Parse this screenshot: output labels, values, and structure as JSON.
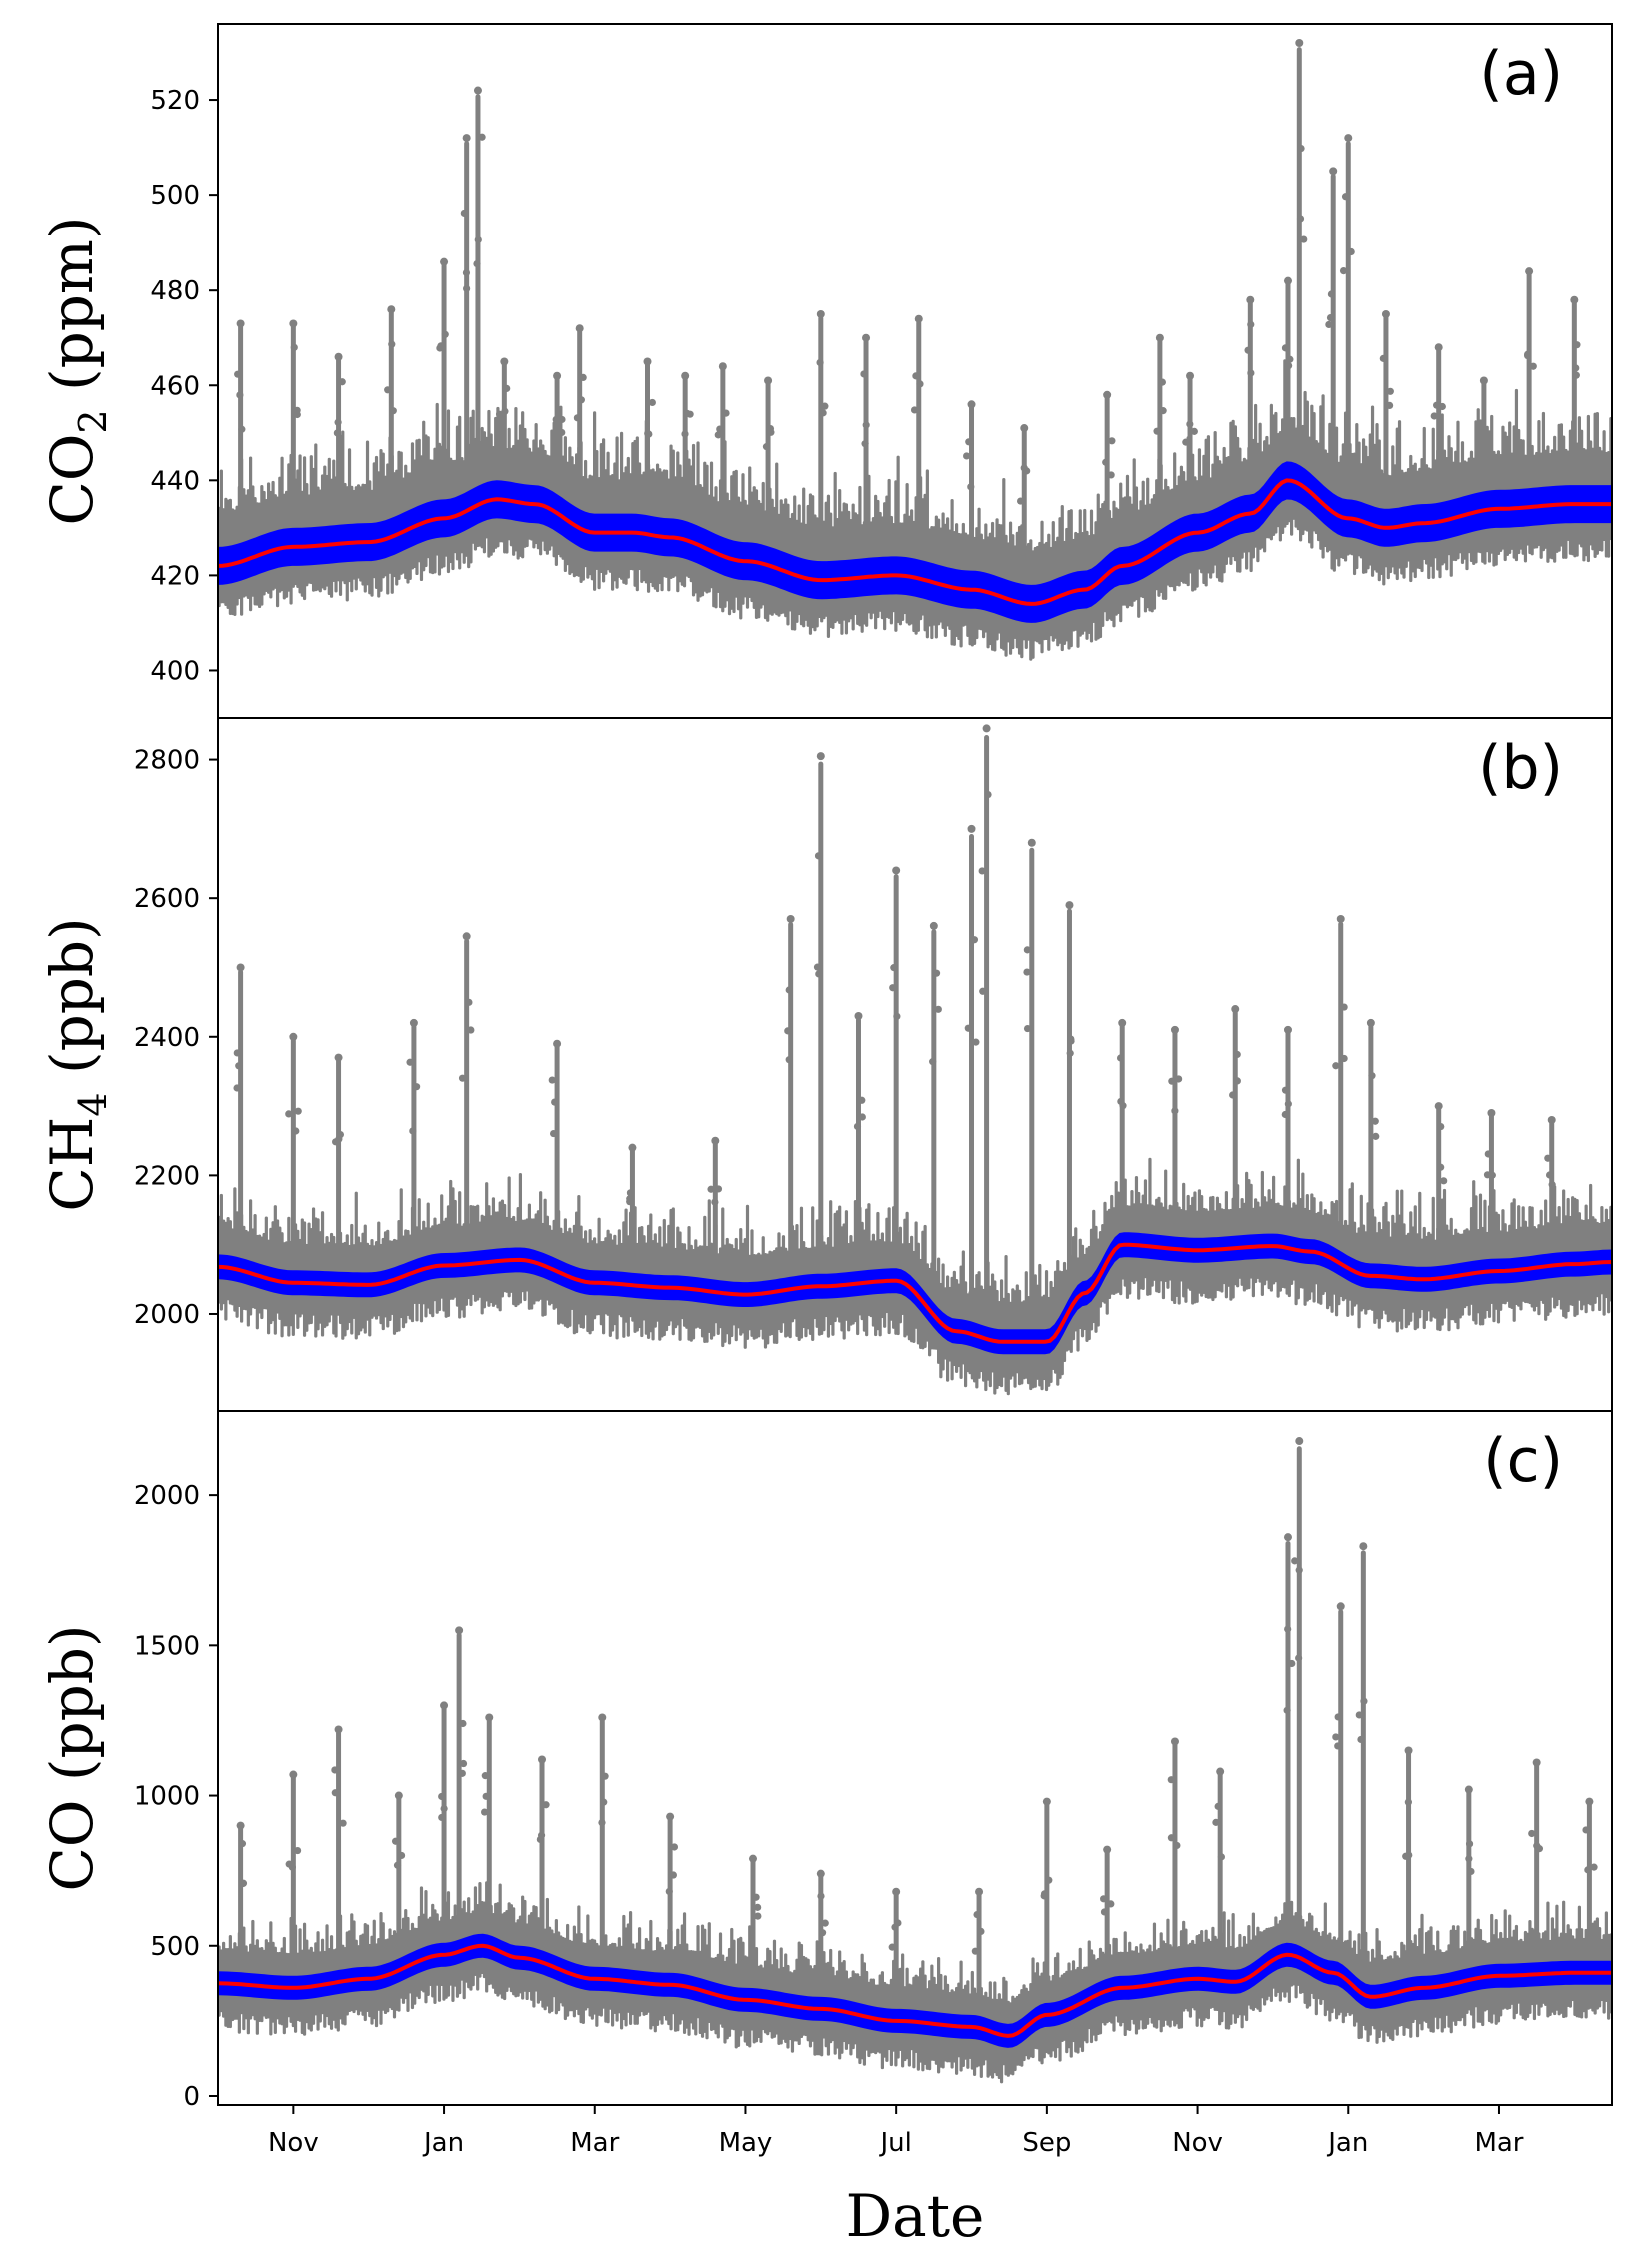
{
  "figure": {
    "xlabel": "Date",
    "x_tick_labels": [
      "Nov",
      "Jan",
      "Mar",
      "May",
      "Jul",
      "Sep",
      "Nov",
      "Jan",
      "Mar"
    ],
    "x_tick_months": [
      1,
      3,
      5,
      7,
      9,
      11,
      13,
      15,
      17
    ],
    "x_range_months": [
      0,
      18.5
    ],
    "colors": {
      "observations": "#808080",
      "baseline_band": "#0000ff",
      "trend_line": "#ff0000"
    }
  },
  "chart_data": [
    {
      "type": "scatter",
      "panel": "(a)",
      "ylabel_main": "CO",
      "ylabel_sub": "2",
      "ylabel_unit": " (ppm)",
      "ylim": [
        390,
        536
      ],
      "yticks": [
        400,
        420,
        440,
        460,
        480,
        500,
        520
      ],
      "trend": {
        "months": [
          0,
          1,
          2,
          3,
          3.7,
          4.2,
          5,
          5.5,
          6,
          7,
          8,
          9,
          10,
          10.8,
          11.5,
          12,
          13,
          13.7,
          14.2,
          15,
          15.5,
          16,
          17,
          18,
          18.5
        ],
        "values": [
          422,
          426,
          427,
          432,
          436,
          435,
          429,
          429,
          428,
          423,
          419,
          420,
          417,
          414,
          417,
          422,
          429,
          433,
          440,
          432,
          430,
          431,
          434,
          435,
          435
        ]
      },
      "band_halfwidth": 4,
      "spikes": [
        {
          "month": 0.3,
          "top": 473
        },
        {
          "month": 1,
          "top": 473
        },
        {
          "month": 1.6,
          "top": 466
        },
        {
          "month": 2.3,
          "top": 476
        },
        {
          "month": 3.0,
          "top": 486
        },
        {
          "month": 3.3,
          "top": 512
        },
        {
          "month": 3.45,
          "top": 522
        },
        {
          "month": 3.8,
          "top": 465
        },
        {
          "month": 4.5,
          "top": 462
        },
        {
          "month": 4.8,
          "top": 472
        },
        {
          "month": 5.7,
          "top": 465
        },
        {
          "month": 6.2,
          "top": 462
        },
        {
          "month": 6.7,
          "top": 464
        },
        {
          "month": 7.3,
          "top": 461
        },
        {
          "month": 8.0,
          "top": 475
        },
        {
          "month": 8.6,
          "top": 470
        },
        {
          "month": 9.3,
          "top": 474
        },
        {
          "month": 10.0,
          "top": 456
        },
        {
          "month": 10.7,
          "top": 451
        },
        {
          "month": 11.8,
          "top": 458
        },
        {
          "month": 12.5,
          "top": 470
        },
        {
          "month": 12.9,
          "top": 462
        },
        {
          "month": 13.7,
          "top": 478
        },
        {
          "month": 14.2,
          "top": 482
        },
        {
          "month": 14.35,
          "top": 532
        },
        {
          "month": 14.8,
          "top": 505
        },
        {
          "month": 15.0,
          "top": 512
        },
        {
          "month": 15.5,
          "top": 475
        },
        {
          "month": 16.2,
          "top": 468
        },
        {
          "month": 16.8,
          "top": 461
        },
        {
          "month": 17.4,
          "top": 484
        },
        {
          "month": 18.0,
          "top": 478
        }
      ],
      "dip_floor": 8,
      "noise_up": 22,
      "seed": 11
    },
    {
      "type": "scatter",
      "panel": "(b)",
      "ylabel_main": "CH",
      "ylabel_sub": "4",
      "ylabel_unit": " (ppb)",
      "ylim": [
        1860,
        2860
      ],
      "yticks": [
        2000,
        2200,
        2400,
        2600,
        2800
      ],
      "trend": {
        "months": [
          0,
          1,
          2,
          3,
          4,
          5,
          6,
          7,
          8,
          9,
          9.8,
          10.4,
          11,
          11.5,
          12,
          13,
          14,
          14.5,
          15.3,
          16,
          17,
          18,
          18.5
        ],
        "values": [
          2068,
          2045,
          2042,
          2070,
          2078,
          2045,
          2038,
          2028,
          2040,
          2048,
          1975,
          1960,
          1960,
          2030,
          2100,
          2092,
          2098,
          2090,
          2055,
          2050,
          2062,
          2072,
          2075
        ]
      },
      "band_halfwidth": 18,
      "spikes": [
        {
          "month": 0.3,
          "top": 2500
        },
        {
          "month": 1.0,
          "top": 2400
        },
        {
          "month": 1.6,
          "top": 2370
        },
        {
          "month": 2.6,
          "top": 2420
        },
        {
          "month": 3.3,
          "top": 2545
        },
        {
          "month": 4.5,
          "top": 2390
        },
        {
          "month": 5.5,
          "top": 2240
        },
        {
          "month": 6.6,
          "top": 2250
        },
        {
          "month": 7.6,
          "top": 2570
        },
        {
          "month": 8.0,
          "top": 2805
        },
        {
          "month": 8.5,
          "top": 2430
        },
        {
          "month": 9.0,
          "top": 2640
        },
        {
          "month": 9.5,
          "top": 2560
        },
        {
          "month": 10.0,
          "top": 2700
        },
        {
          "month": 10.2,
          "top": 2845
        },
        {
          "month": 10.8,
          "top": 2680
        },
        {
          "month": 11.3,
          "top": 2590
        },
        {
          "month": 12.0,
          "top": 2420
        },
        {
          "month": 12.7,
          "top": 2410
        },
        {
          "month": 13.5,
          "top": 2440
        },
        {
          "month": 14.2,
          "top": 2410
        },
        {
          "month": 14.9,
          "top": 2570
        },
        {
          "month": 15.3,
          "top": 2420
        },
        {
          "month": 16.2,
          "top": 2300
        },
        {
          "month": 16.9,
          "top": 2290
        },
        {
          "month": 17.7,
          "top": 2280
        }
      ],
      "dip_floor": 60,
      "noise_up": 120,
      "seed": 23
    },
    {
      "type": "scatter",
      "panel": "(c)",
      "ylabel_main": "CO",
      "ylabel_sub": "",
      "ylabel_unit": " (ppb)",
      "ylim": [
        -30,
        2280
      ],
      "yticks": [
        0,
        500,
        1000,
        1500,
        2000
      ],
      "trend": {
        "months": [
          0,
          1,
          2,
          3,
          3.5,
          4,
          5,
          6,
          7,
          8,
          9,
          10,
          10.5,
          11,
          12,
          13,
          13.5,
          14.2,
          14.8,
          15.3,
          16,
          17,
          18,
          18.5
        ],
        "values": [
          375,
          360,
          390,
          470,
          500,
          460,
          390,
          370,
          320,
          290,
          250,
          230,
          200,
          270,
          360,
          390,
          380,
          470,
          410,
          330,
          360,
          400,
          410,
          410
        ]
      },
      "band_halfwidth": 40,
      "spikes": [
        {
          "month": 0.3,
          "top": 900
        },
        {
          "month": 1.0,
          "top": 1070
        },
        {
          "month": 1.6,
          "top": 1220
        },
        {
          "month": 2.4,
          "top": 1000
        },
        {
          "month": 3.0,
          "top": 1300
        },
        {
          "month": 3.2,
          "top": 1550
        },
        {
          "month": 3.6,
          "top": 1260
        },
        {
          "month": 4.3,
          "top": 1120
        },
        {
          "month": 5.1,
          "top": 1260
        },
        {
          "month": 6.0,
          "top": 930
        },
        {
          "month": 7.1,
          "top": 790
        },
        {
          "month": 8.0,
          "top": 740
        },
        {
          "month": 9.0,
          "top": 680
        },
        {
          "month": 10.1,
          "top": 680
        },
        {
          "month": 11.0,
          "top": 980
        },
        {
          "month": 11.8,
          "top": 820
        },
        {
          "month": 12.7,
          "top": 1180
        },
        {
          "month": 13.3,
          "top": 1080
        },
        {
          "month": 14.2,
          "top": 1860
        },
        {
          "month": 14.35,
          "top": 2180
        },
        {
          "month": 14.9,
          "top": 1630
        },
        {
          "month": 15.2,
          "top": 1830
        },
        {
          "month": 15.8,
          "top": 1150
        },
        {
          "month": 16.6,
          "top": 1020
        },
        {
          "month": 17.5,
          "top": 1110
        },
        {
          "month": 18.2,
          "top": 980
        }
      ],
      "dip_floor": 120,
      "noise_up": 220,
      "seed": 37
    }
  ]
}
